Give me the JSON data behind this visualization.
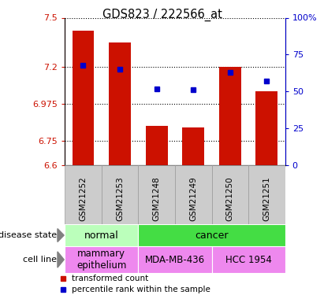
{
  "title": "GDS823 / 222566_at",
  "samples": [
    "GSM21252",
    "GSM21253",
    "GSM21248",
    "GSM21249",
    "GSM21250",
    "GSM21251"
  ],
  "bar_values": [
    7.42,
    7.35,
    6.84,
    6.83,
    7.2,
    7.05
  ],
  "percentile_values": [
    68,
    65,
    52,
    51,
    63,
    57
  ],
  "ylim_left": [
    6.6,
    7.5
  ],
  "ylim_right": [
    0,
    100
  ],
  "yticks_left": [
    6.6,
    6.75,
    6.975,
    7.2,
    7.5
  ],
  "ytick_labels_left": [
    "6.6",
    "6.75",
    "6.975",
    "7.2",
    "7.5"
  ],
  "yticks_right": [
    0,
    25,
    50,
    75,
    100
  ],
  "ytick_labels_right": [
    "0",
    "25",
    "50",
    "75",
    "100%"
  ],
  "bar_color": "#cc1100",
  "dot_color": "#0000cc",
  "bar_width": 0.6,
  "bar_bottom": 6.6,
  "disease_state_labels": [
    {
      "label": "normal",
      "cols": [
        0,
        1
      ],
      "color": "#bbffbb"
    },
    {
      "label": "cancer",
      "cols": [
        2,
        3,
        4,
        5
      ],
      "color": "#44dd44"
    }
  ],
  "cell_line_labels": [
    {
      "label": "mammary\nepithelium",
      "cols": [
        0,
        1
      ],
      "color": "#ee88ee"
    },
    {
      "label": "MDA-MB-436",
      "cols": [
        2,
        3
      ],
      "color": "#ee88ee"
    },
    {
      "label": "HCC 1954",
      "cols": [
        4,
        5
      ],
      "color": "#ee88ee"
    }
  ],
  "legend_items": [
    {
      "label": "transformed count",
      "color": "#cc1100"
    },
    {
      "label": "percentile rank within the sample",
      "color": "#0000cc"
    }
  ],
  "left_label_ds": "disease state",
  "left_label_cl": "cell line",
  "sample_box_color": "#cccccc",
  "sample_box_edge": "#999999"
}
